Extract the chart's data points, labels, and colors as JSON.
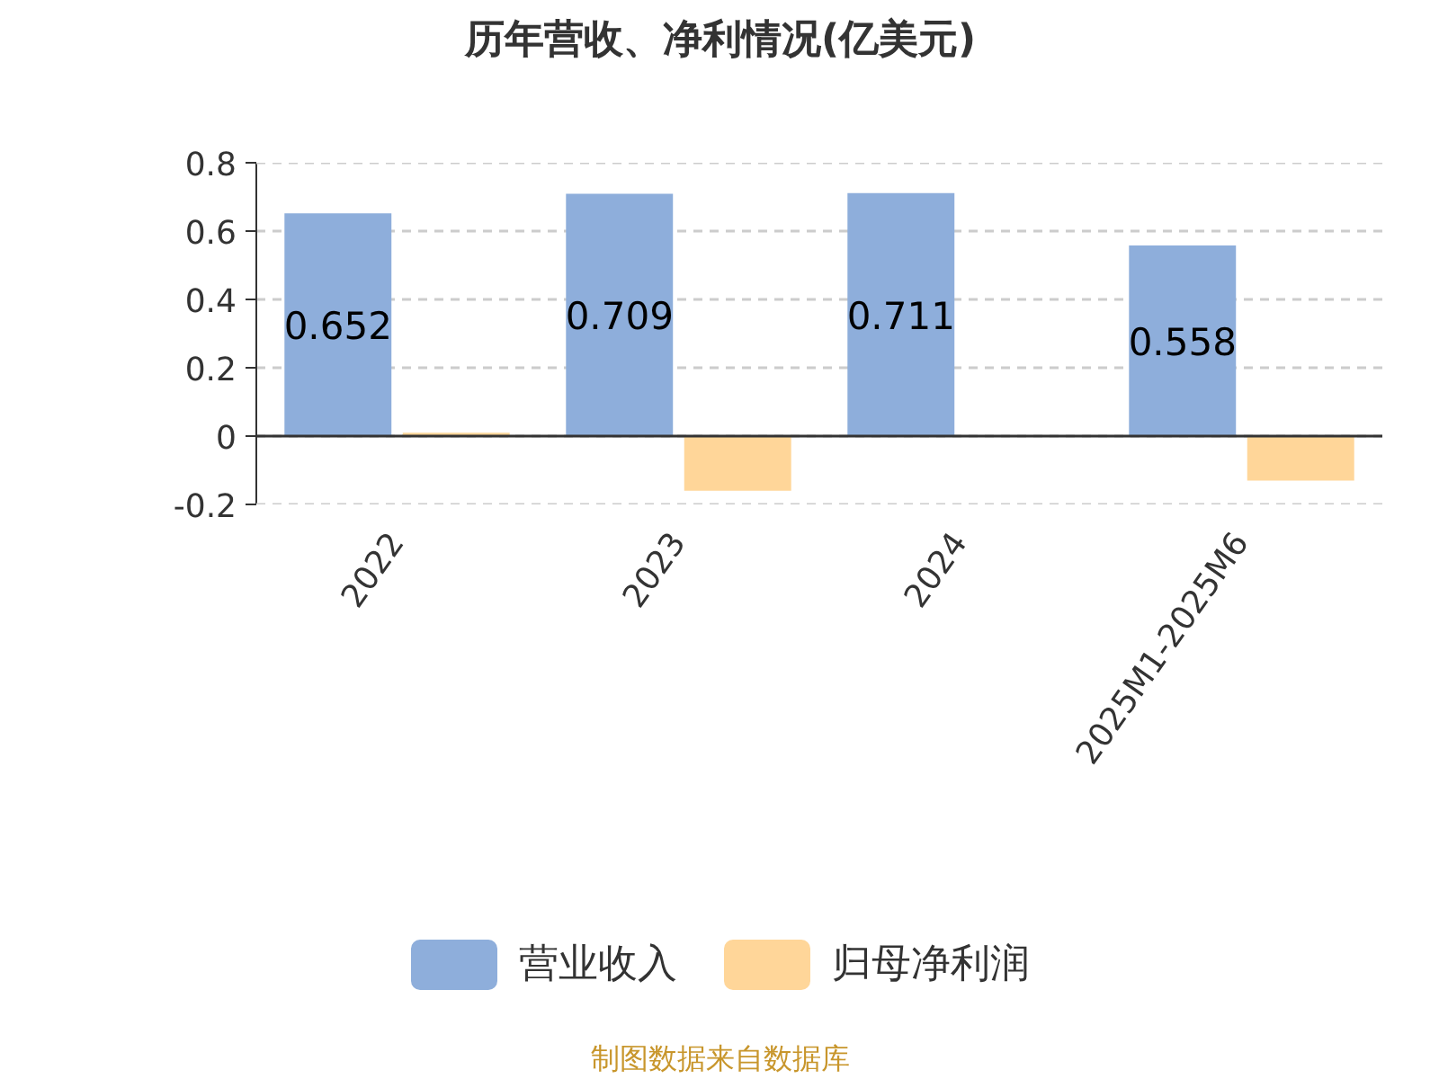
{
  "chart_data": {
    "type": "bar",
    "title": "历年营收、净利情况(亿美元)",
    "categories": [
      "2022",
      "2023",
      "2024",
      "2025M1-2025M6"
    ],
    "series": [
      {
        "name": "营业收入",
        "color": "#8eaedb",
        "values": [
          0.652,
          0.709,
          0.711,
          0.558
        ],
        "value_labels": [
          "0.652",
          "0.709",
          "0.711",
          "0.558"
        ]
      },
      {
        "name": "归母净利润",
        "color": "#ffd699",
        "values": [
          0.01,
          -0.16,
          0,
          -0.13
        ]
      }
    ],
    "ylim": [
      -0.2,
      0.8
    ],
    "yticks": [
      -0.2,
      0,
      0.2,
      0.4,
      0.6,
      0.8
    ],
    "grid": "y",
    "legend": "bottom",
    "annotations": [
      "制图数据来自数据库"
    ]
  }
}
